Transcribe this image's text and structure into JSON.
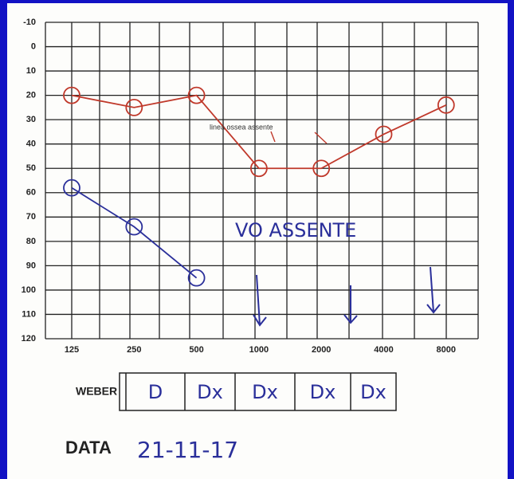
{
  "chart_data": {
    "type": "line",
    "categories": [
      "125",
      "250",
      "500",
      "1000",
      "2000",
      "4000",
      "8000"
    ],
    "series": [
      {
        "color": "#c0392b",
        "values": [
          20,
          25,
          20,
          50,
          50,
          36,
          24
        ]
      },
      {
        "color": "#2a2f9a",
        "values": [
          58,
          74,
          95,
          null,
          null,
          null,
          null
        ]
      }
    ],
    "ylim": [
      -10,
      120
    ],
    "yticks": [
      -10,
      0,
      10,
      20,
      30,
      40,
      50,
      60,
      70,
      80,
      90,
      100,
      110,
      120
    ],
    "inverted_y": true,
    "grid": true,
    "annotations": [
      "linea ossea assente",
      "VO ASSENTE"
    ],
    "weber": {
      "label": "WEBER",
      "cells": [
        "D",
        "Dx",
        "Dx",
        "Dx",
        "Dx"
      ]
    },
    "date": {
      "label": "DATA",
      "value": "21-11-17"
    }
  }
}
